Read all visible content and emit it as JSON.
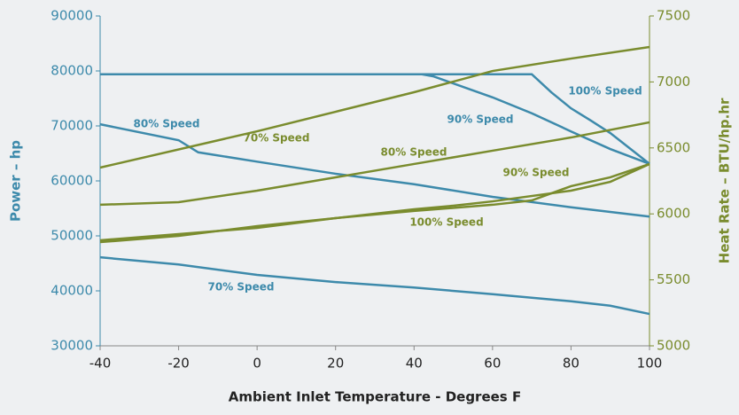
{
  "chart_data": {
    "type": "line",
    "xlabel": "Ambient Inlet Temperature - Degrees F",
    "ylabel": "Power – hp",
    "y2label": "Heat Rate – BTU/hp.hr",
    "xlim": [
      -40,
      100
    ],
    "xticks": [
      -40,
      -20,
      0,
      20,
      40,
      60,
      80,
      100
    ],
    "ylim": [
      30000,
      90000
    ],
    "yticks": [
      30000,
      40000,
      50000,
      60000,
      70000,
      80000,
      90000
    ],
    "y2lim": [
      5000,
      7500
    ],
    "y2ticks": [
      5000,
      5500,
      6000,
      6500,
      7000,
      7500
    ],
    "series": [
      {
        "name": "100% Speed",
        "color": "#3d8aab",
        "axis": "y",
        "x": [
          -40,
          70,
          75,
          80,
          85,
          90,
          100
        ],
        "values": [
          79400,
          79400,
          76100,
          73200,
          71000,
          68700,
          63100
        ]
      },
      {
        "name": "90% Speed",
        "color": "#3d8aab",
        "axis": "y",
        "x": [
          -40,
          42,
          45,
          60,
          70,
          80,
          90,
          100
        ],
        "values": [
          79400,
          79400,
          79000,
          75200,
          72300,
          69000,
          65800,
          63100
        ]
      },
      {
        "name": "80% Speed",
        "color": "#3d8aab",
        "axis": "y",
        "x": [
          -40,
          -20,
          -15,
          0,
          20,
          40,
          60,
          80,
          100
        ],
        "values": [
          70300,
          67400,
          65200,
          63500,
          61300,
          59400,
          57100,
          55200,
          53500
        ]
      },
      {
        "name": "70% Speed",
        "color": "#3d8aab",
        "axis": "y",
        "x": [
          -40,
          -20,
          0,
          20,
          40,
          60,
          80,
          90,
          100
        ],
        "values": [
          46100,
          44800,
          42900,
          41600,
          40600,
          39400,
          38100,
          37300,
          35800
        ]
      },
      {
        "name": "70% Speed",
        "color": "#7a8c2e",
        "axis": "y2",
        "x": [
          -40,
          0,
          20,
          40,
          60,
          80,
          100
        ],
        "values": [
          6351,
          6626,
          6774,
          6922,
          7083,
          7177,
          7265
        ]
      },
      {
        "name": "80% Speed",
        "color": "#7a8c2e",
        "axis": "y2",
        "x": [
          -40,
          -20,
          0,
          20,
          40,
          60,
          80,
          100
        ],
        "values": [
          6069,
          6089,
          6176,
          6277,
          6378,
          6479,
          6579,
          6694
        ]
      },
      {
        "name": "90% Speed",
        "color": "#7a8c2e",
        "axis": "y2",
        "x": [
          -40,
          0,
          20,
          40,
          50,
          60,
          80,
          90,
          100
        ],
        "values": [
          5800,
          5894,
          5968,
          6035,
          6062,
          6095,
          6176,
          6243,
          6378
        ]
      },
      {
        "name": "100% Speed",
        "color": "#7a8c2e",
        "axis": "y2",
        "x": [
          -40,
          -20,
          0,
          20,
          40,
          60,
          70,
          80,
          90,
          100
        ],
        "values": [
          5786,
          5833,
          5907,
          5968,
          6022,
          6069,
          6102,
          6210,
          6277,
          6378
        ]
      }
    ]
  }
}
